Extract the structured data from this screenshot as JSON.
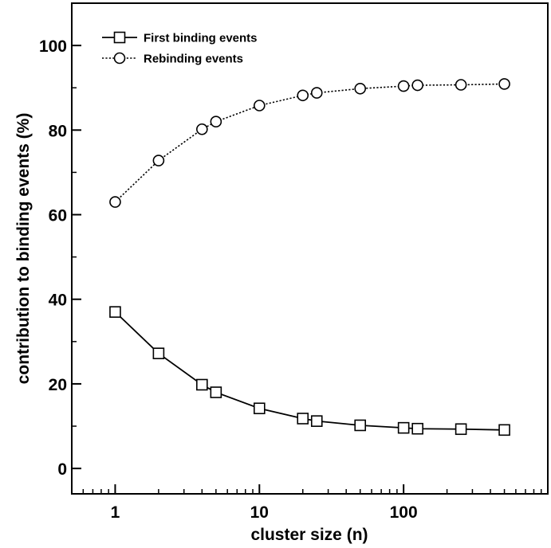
{
  "chart_data": {
    "type": "line",
    "xscale": "log",
    "xlabel": "cluster size (n)",
    "ylabel": "contribution to binding events (%)",
    "xlim": [
      0.5,
      1000
    ],
    "ylim": [
      -6,
      110
    ],
    "x_ticks": [
      1,
      10,
      100
    ],
    "x_tick_labels": [
      "1",
      "10",
      "100"
    ],
    "y_ticks": [
      0,
      20,
      40,
      60,
      80,
      100
    ],
    "y_tick_labels": [
      "0",
      "20",
      "40",
      "60",
      "80",
      "100"
    ],
    "grid": false,
    "legend_position": "top-left",
    "x": [
      1,
      2,
      4,
      5,
      10,
      20,
      25,
      50,
      100,
      125,
      250,
      500
    ],
    "series": [
      {
        "name": "First binding events",
        "marker": "square",
        "line_style": "solid",
        "color": "#000000",
        "values": [
          37.0,
          27.2,
          19.8,
          18.0,
          14.2,
          11.8,
          11.2,
          10.2,
          9.6,
          9.4,
          9.3,
          9.1
        ]
      },
      {
        "name": "Rebinding events",
        "marker": "circle",
        "line_style": "dotted",
        "color": "#000000",
        "values": [
          63.0,
          72.8,
          80.2,
          82.0,
          85.8,
          88.2,
          88.8,
          89.8,
          90.4,
          90.6,
          90.7,
          90.9
        ]
      }
    ]
  }
}
